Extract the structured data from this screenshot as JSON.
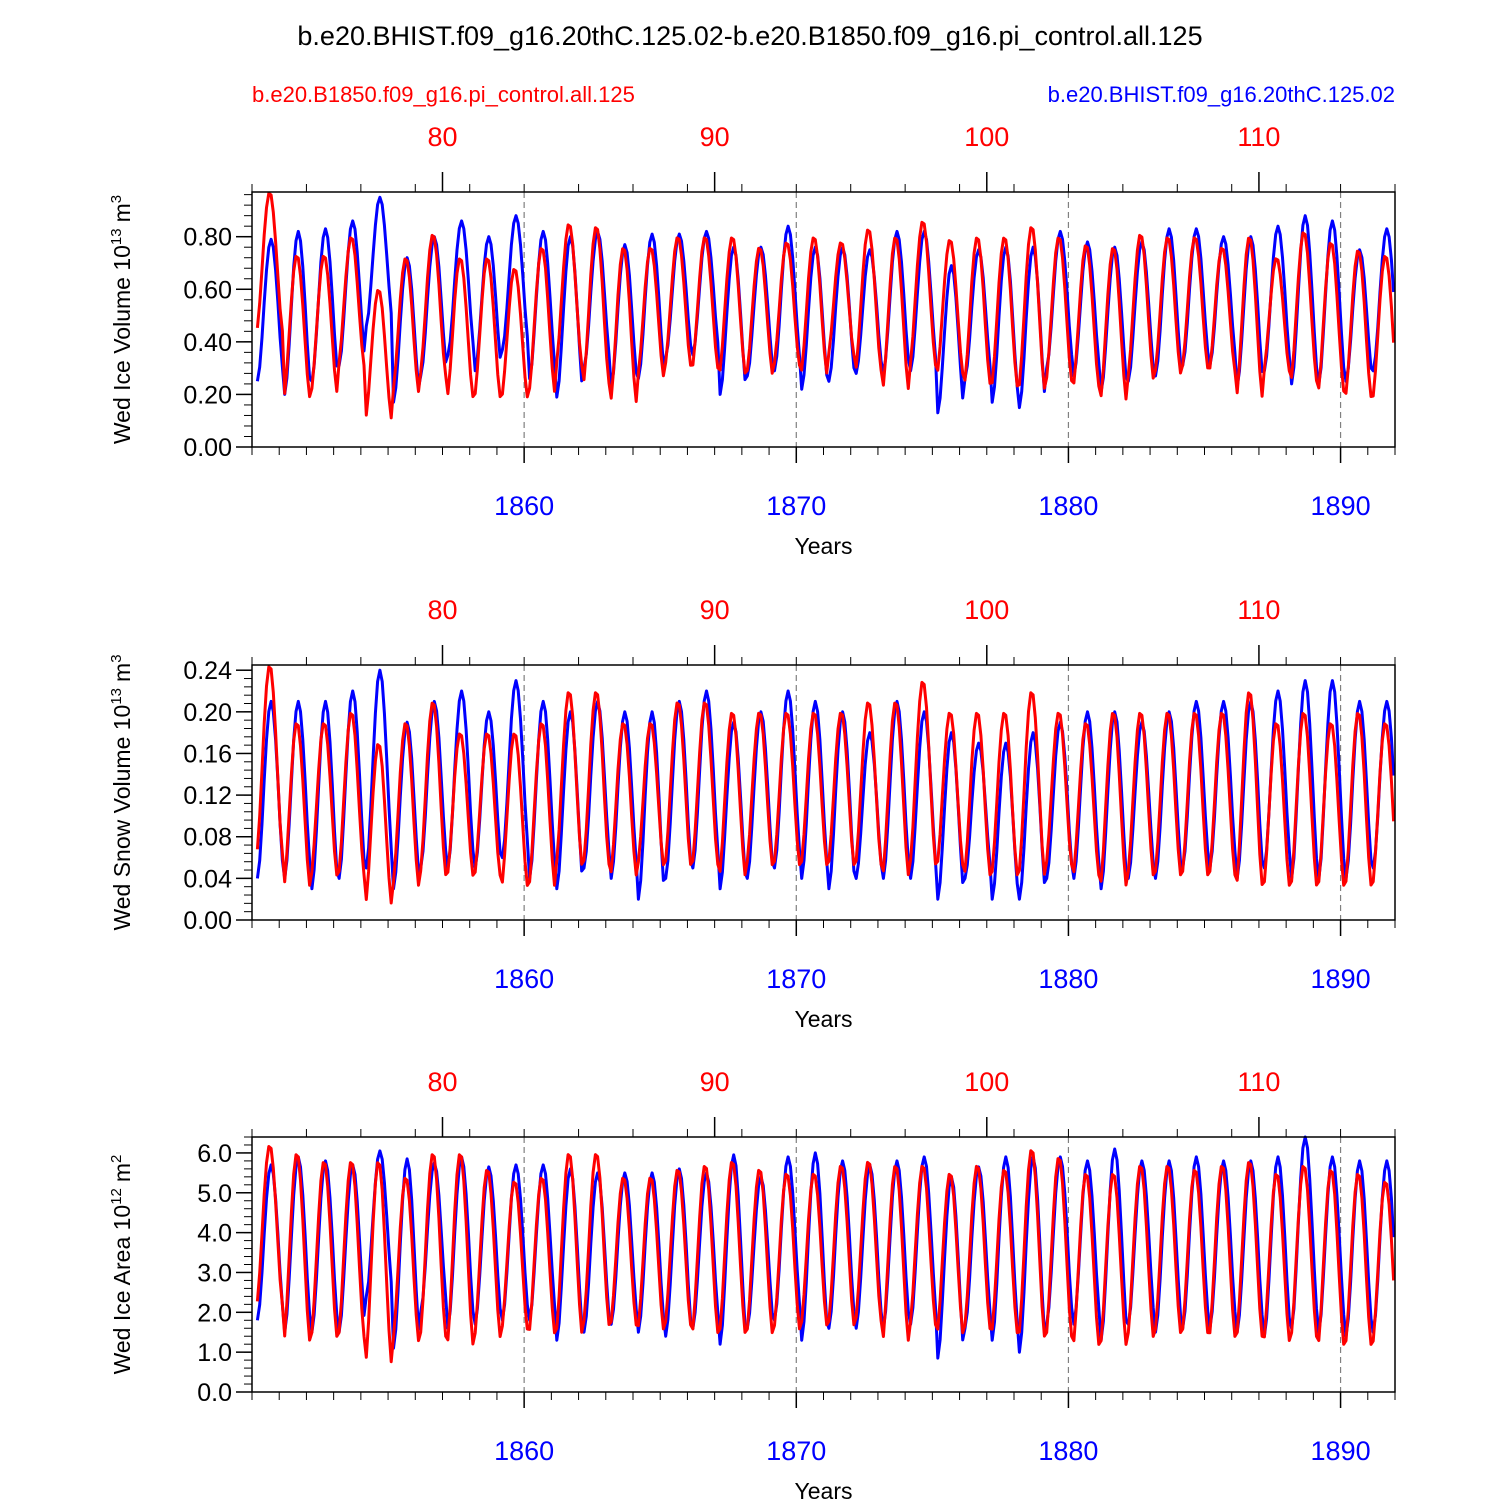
{
  "title": "b.e20.BHIST.f09_g16.20thC.125.02-b.e20.B1850.f09_g16.pi_control.all.125",
  "legend": {
    "red_case": "b.e20.B1850.f09_g16.pi_control.all.125",
    "blue_case": "b.e20.BHIST.f09_g16.20thC.125.02"
  },
  "colors": {
    "red": "#ff0000",
    "blue": "#0000ff",
    "axis": "#000000",
    "grid": "#808080"
  },
  "chart_data": [
    {
      "type": "line",
      "title": "",
      "ylabel_main": "Wed Ice Volume 10",
      "ylabel_exp": "13",
      "ylabel_unit": "m",
      "ylabel_unit_exp": "3",
      "xlabel": "Years",
      "ylim": [
        0.0,
        0.97
      ],
      "yticks": [
        "0.00",
        "0.20",
        "0.40",
        "0.60",
        "0.80"
      ],
      "ytick_values": [
        0.0,
        0.2,
        0.4,
        0.6,
        0.8
      ],
      "bottom_axis": {
        "range": [
          1850,
          1892
        ],
        "ticks": [
          "1860",
          "1870",
          "1880",
          "1890"
        ],
        "tick_values": [
          1860,
          1870,
          1880,
          1890
        ],
        "color": "blue"
      },
      "top_axis": {
        "range": [
          73,
          115
        ],
        "ticks": [
          "80",
          "90",
          "100",
          "110"
        ],
        "tick_values": [
          80,
          90,
          100,
          110
        ],
        "color": "red"
      },
      "series": [
        {
          "name": "b.e20.BHIST.f09_g16.20thC.125.02",
          "color": "blue",
          "start_year": 1850.2,
          "annual_max": [
            0.79,
            0.82,
            0.83,
            0.86,
            0.95,
            0.72,
            0.8,
            0.86,
            0.8,
            0.88,
            0.82,
            0.8,
            0.82,
            0.77,
            0.81,
            0.81,
            0.82,
            0.76,
            0.76,
            0.84,
            0.76,
            0.76,
            0.75,
            0.82,
            0.82,
            0.69,
            0.75,
            0.76,
            0.76,
            0.82,
            0.78,
            0.76,
            0.78,
            0.83,
            0.83,
            0.8,
            0.8,
            0.84,
            0.88,
            0.86,
            0.75,
            0.83,
            0.81
          ],
          "annual_min": [
            0.25,
            0.2,
            0.25,
            0.31,
            0.46,
            0.17,
            0.27,
            0.35,
            0.29,
            0.37,
            0.26,
            0.19,
            0.3,
            0.23,
            0.26,
            0.34,
            0.35,
            0.2,
            0.27,
            0.29,
            0.22,
            0.25,
            0.28,
            0.28,
            0.29,
            0.13,
            0.26,
            0.17,
            0.15,
            0.3,
            0.27,
            0.21,
            0.25,
            0.27,
            0.31,
            0.31,
            0.23,
            0.29,
            0.24,
            0.24,
            0.25,
            0.29,
            0.3
          ]
        },
        {
          "name": "b.e20.B1850.f09_g16.pi_control.all.125",
          "color": "red",
          "start_year": 1850.2,
          "annual_max": [
            0.97,
            0.73,
            0.73,
            0.8,
            0.6,
            0.72,
            0.81,
            0.72,
            0.72,
            0.68,
            0.76,
            0.85,
            0.84,
            0.76,
            0.76,
            0.8,
            0.8,
            0.8,
            0.76,
            0.78,
            0.8,
            0.78,
            0.83,
            0.8,
            0.86,
            0.79,
            0.8,
            0.8,
            0.84,
            0.8,
            0.77,
            0.76,
            0.81,
            0.8,
            0.8,
            0.76,
            0.8,
            0.72,
            0.82,
            0.78,
            0.75,
            0.73,
            0.73
          ],
          "annual_min": [
            0.43,
            0.18,
            0.2,
            0.3,
            0.1,
            0.2,
            0.26,
            0.18,
            0.18,
            0.18,
            0.2,
            0.3,
            0.23,
            0.16,
            0.26,
            0.3,
            0.29,
            0.27,
            0.27,
            0.3,
            0.27,
            0.34,
            0.28,
            0.21,
            0.3,
            0.27,
            0.23,
            0.22,
            0.21,
            0.24,
            0.22,
            0.17,
            0.25,
            0.27,
            0.29,
            0.28,
            0.18,
            0.28,
            0.24,
            0.2,
            0.18,
            0.17,
            0.3
          ]
        }
      ]
    },
    {
      "type": "line",
      "title": "",
      "ylabel_main": "Wed Snow Volume 10",
      "ylabel_exp": "13",
      "ylabel_unit": "m",
      "ylabel_unit_exp": "3",
      "xlabel": "Years",
      "ylim": [
        0.0,
        0.245
      ],
      "yticks": [
        "0.00",
        "0.04",
        "0.08",
        "0.12",
        "0.16",
        "0.20",
        "0.24"
      ],
      "ytick_values": [
        0.0,
        0.04,
        0.08,
        0.12,
        0.16,
        0.2,
        0.24
      ],
      "bottom_axis": {
        "range": [
          1850,
          1892
        ],
        "ticks": [
          "1860",
          "1870",
          "1880",
          "1890"
        ],
        "tick_values": [
          1860,
          1870,
          1880,
          1890
        ],
        "color": "blue"
      },
      "top_axis": {
        "range": [
          73,
          115
        ],
        "ticks": [
          "80",
          "90",
          "100",
          "110"
        ],
        "tick_values": [
          80,
          90,
          100,
          110
        ],
        "color": "red"
      },
      "series": [
        {
          "name": "b.e20.BHIST.f09_g16.20thC.125.02",
          "color": "blue",
          "start_year": 1850.2,
          "annual_max": [
            0.21,
            0.21,
            0.21,
            0.22,
            0.24,
            0.19,
            0.21,
            0.22,
            0.2,
            0.23,
            0.21,
            0.2,
            0.21,
            0.2,
            0.2,
            0.21,
            0.22,
            0.19,
            0.2,
            0.22,
            0.21,
            0.2,
            0.18,
            0.21,
            0.2,
            0.18,
            0.17,
            0.17,
            0.18,
            0.19,
            0.2,
            0.2,
            0.19,
            0.2,
            0.21,
            0.21,
            0.21,
            0.22,
            0.23,
            0.23,
            0.21,
            0.21,
            0.2
          ],
          "annual_min": [
            0.04,
            0.04,
            0.03,
            0.04,
            0.05,
            0.03,
            0.05,
            0.05,
            0.05,
            0.06,
            0.04,
            0.03,
            0.05,
            0.04,
            0.02,
            0.04,
            0.05,
            0.03,
            0.04,
            0.05,
            0.04,
            0.03,
            0.04,
            0.04,
            0.04,
            0.02,
            0.04,
            0.02,
            0.02,
            0.04,
            0.04,
            0.03,
            0.04,
            0.04,
            0.05,
            0.05,
            0.04,
            0.05,
            0.04,
            0.04,
            0.04,
            0.05,
            0.04
          ]
        },
        {
          "name": "b.e20.B1850.f09_g16.pi_control.all.125",
          "color": "red",
          "start_year": 1850.2,
          "annual_max": [
            0.245,
            0.19,
            0.19,
            0.2,
            0.17,
            0.19,
            0.21,
            0.18,
            0.18,
            0.18,
            0.19,
            0.22,
            0.22,
            0.19,
            0.19,
            0.21,
            0.21,
            0.2,
            0.2,
            0.2,
            0.2,
            0.2,
            0.21,
            0.21,
            0.23,
            0.2,
            0.2,
            0.2,
            0.22,
            0.2,
            0.19,
            0.2,
            0.2,
            0.2,
            0.2,
            0.2,
            0.22,
            0.19,
            0.2,
            0.19,
            0.2,
            0.19,
            0.18
          ],
          "annual_min": [
            0.06,
            0.03,
            0.04,
            0.04,
            0.013,
            0.03,
            0.04,
            0.04,
            0.04,
            0.03,
            0.03,
            0.05,
            0.05,
            0.04,
            0.05,
            0.05,
            0.05,
            0.04,
            0.05,
            0.05,
            0.05,
            0.05,
            0.05,
            0.04,
            0.05,
            0.05,
            0.04,
            0.04,
            0.04,
            0.05,
            0.04,
            0.03,
            0.04,
            0.04,
            0.04,
            0.04,
            0.03,
            0.03,
            0.03,
            0.03,
            0.03,
            0.03,
            0.04
          ]
        }
      ]
    },
    {
      "type": "line",
      "title": "",
      "ylabel_main": "Wed Ice Area 10",
      "ylabel_exp": "12",
      "ylabel_unit": "m",
      "ylabel_unit_exp": "2",
      "xlabel": "Years",
      "ylim": [
        0.0,
        6.4
      ],
      "yticks": [
        "0.0",
        "1.0",
        "2.0",
        "3.0",
        "4.0",
        "5.0",
        "6.0"
      ],
      "ytick_values": [
        0.0,
        1.0,
        2.0,
        3.0,
        4.0,
        5.0,
        6.0
      ],
      "bottom_axis": {
        "range": [
          1850,
          1892
        ],
        "ticks": [
          "1860",
          "1870",
          "1880",
          "1890"
        ],
        "tick_values": [
          1860,
          1870,
          1880,
          1890
        ],
        "color": "blue"
      },
      "top_axis": {
        "range": [
          73,
          115
        ],
        "ticks": [
          "80",
          "90",
          "100",
          "110"
        ],
        "tick_values": [
          80,
          90,
          100,
          110
        ],
        "color": "red"
      },
      "series": [
        {
          "name": "b.e20.BHIST.f09_g16.20thC.125.02",
          "color": "blue",
          "start_year": 1850.2,
          "annual_max": [
            5.7,
            5.9,
            5.8,
            5.7,
            6.05,
            5.85,
            5.75,
            5.9,
            5.65,
            5.7,
            5.7,
            5.6,
            5.5,
            5.5,
            5.5,
            5.6,
            5.5,
            5.95,
            5.4,
            5.9,
            6.0,
            5.8,
            5.7,
            5.8,
            5.9,
            5.4,
            5.65,
            5.9,
            5.9,
            5.9,
            5.8,
            6.1,
            5.8,
            5.8,
            5.9,
            5.8,
            5.8,
            5.9,
            6.4,
            5.9,
            5.8,
            5.8,
            5.8
          ],
          "annual_min": [
            1.8,
            1.5,
            1.5,
            1.5,
            2.4,
            1.1,
            2.0,
            1.6,
            1.7,
            1.8,
            1.8,
            1.3,
            1.5,
            1.7,
            1.5,
            1.4,
            1.6,
            1.2,
            1.6,
            1.8,
            1.3,
            1.6,
            1.6,
            1.6,
            1.7,
            0.85,
            1.6,
            1.3,
            1.0,
            1.7,
            1.7,
            1.3,
            1.7,
            1.5,
            1.6,
            1.6,
            1.5,
            1.4,
            1.6,
            1.5,
            1.4,
            1.5,
            1.5
          ]
        },
        {
          "name": "b.e20.B1850.f09_g16.pi_control.all.125",
          "color": "red",
          "start_year": 1850.2,
          "annual_max": [
            6.2,
            6.0,
            5.8,
            5.8,
            5.8,
            5.4,
            6.0,
            6.0,
            5.6,
            5.3,
            5.4,
            6.0,
            6.0,
            5.4,
            5.4,
            5.6,
            5.7,
            5.8,
            5.6,
            5.5,
            5.5,
            5.7,
            5.8,
            5.7,
            5.7,
            5.5,
            5.7,
            5.6,
            6.1,
            5.9,
            5.5,
            5.5,
            5.7,
            5.7,
            5.6,
            5.7,
            5.8,
            5.5,
            5.7,
            5.6,
            5.5,
            5.3,
            5.9
          ],
          "annual_min": [
            2.1,
            1.2,
            1.3,
            1.3,
            0.65,
            1.2,
            1.3,
            1.1,
            1.3,
            1.5,
            1.4,
            1.4,
            1.6,
            1.6,
            1.5,
            1.6,
            1.4,
            1.4,
            1.4,
            1.5,
            1.6,
            1.6,
            1.7,
            1.2,
            1.6,
            1.4,
            1.5,
            1.4,
            1.3,
            1.3,
            1.1,
            1.1,
            1.3,
            1.4,
            1.4,
            1.3,
            1.3,
            1.2,
            1.3,
            1.1,
            1.1,
            1.1,
            1.8
          ]
        }
      ]
    }
  ]
}
